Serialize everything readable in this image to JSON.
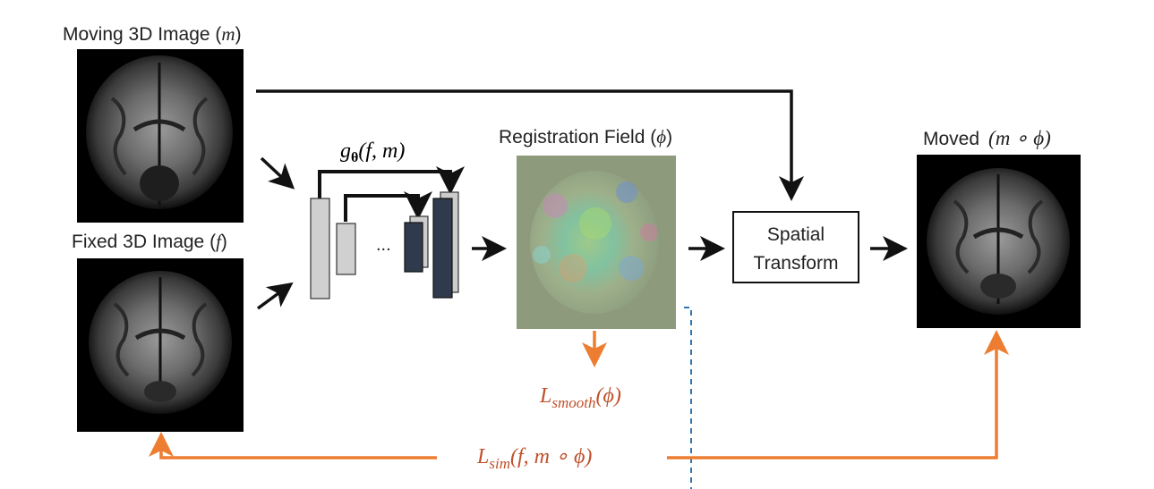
{
  "colors": {
    "black_arrow": "#111111",
    "loss_arrow": "#ed7d31",
    "loss_text": "#c0502a",
    "dashed_line": "#2e75b6",
    "encoder_block_fill": "#d0d0d0",
    "decoder_block_fill": "#2f3b4c",
    "decoder_back_fill": "#cccccc"
  },
  "moving_image": {
    "label_text": "Moving 3D Image (",
    "label_symbol": "m",
    "label_close": ")"
  },
  "fixed_image": {
    "label_text": "Fixed 3D Image (",
    "label_symbol": "f",
    "label_close": ")"
  },
  "network": {
    "func": "g",
    "subscript": "θ",
    "args": "(f, m)",
    "ellipsis": "..."
  },
  "registration_field": {
    "label_text": "Registration Field (",
    "label_symbol": "ϕ",
    "label_close": ")"
  },
  "spatial_transform": {
    "line1": "Spatial",
    "line2": "Transform"
  },
  "moved_image": {
    "label_text": "Moved",
    "label_formula": "(m ∘ ϕ)"
  },
  "smooth_loss": {
    "symbol": "L",
    "subscript": "smooth",
    "args": "(ϕ)"
  },
  "sim_loss": {
    "symbol": "L",
    "subscript": "sim",
    "args": "(f, m ∘ ϕ)"
  }
}
